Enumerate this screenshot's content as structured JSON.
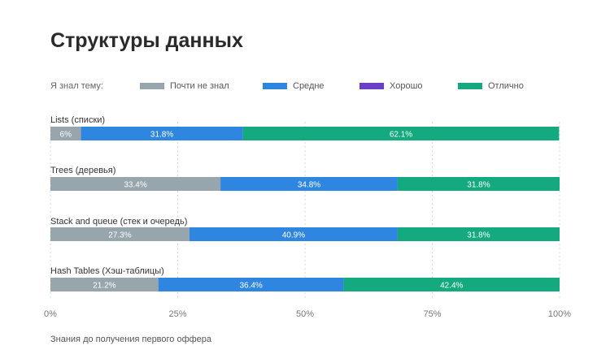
{
  "title": "Структуры данных",
  "legend_prefix": "Я знал тему:",
  "footnote": "Знания до получения первого оффера",
  "colors": {
    "Почти не знал": "#97a5ac",
    "Средне": "#2f86e0",
    "Хорошо": "#6a3ec9",
    "Отлично": "#14a97e"
  },
  "chart_data": {
    "type": "bar",
    "orientation": "horizontal",
    "stacked": true,
    "title": "Структуры данных",
    "categories": [
      "Lists (списки)",
      "Trees (деревья)",
      "Stack and queue (стек и очередь)",
      "Hash Tables (Хэш-таблицы)"
    ],
    "series": [
      {
        "name": "Почти не знал",
        "values": [
          6,
          33.4,
          27.3,
          21.2
        ],
        "labels": [
          "6%",
          "33.4%",
          "27.3%",
          "21.2%"
        ]
      },
      {
        "name": "Средне",
        "values": [
          31.8,
          34.8,
          40.9,
          36.4
        ],
        "labels": [
          "31.8%",
          "34.8%",
          "40.9%",
          "36.4%"
        ]
      },
      {
        "name": "Хорошо",
        "values": [
          0,
          0,
          0,
          0
        ],
        "labels": [
          "",
          "",
          "",
          ""
        ]
      },
      {
        "name": "Отлично",
        "values": [
          62.1,
          31.8,
          31.8,
          42.4
        ],
        "labels": [
          "62.1%",
          "31.8%",
          "31.8%",
          "42.4%"
        ]
      }
    ],
    "xlim": [
      0,
      100
    ],
    "xticks": [
      "0%",
      "25%",
      "50%",
      "75%",
      "100%"
    ],
    "grid": true,
    "legend_position": "top"
  }
}
